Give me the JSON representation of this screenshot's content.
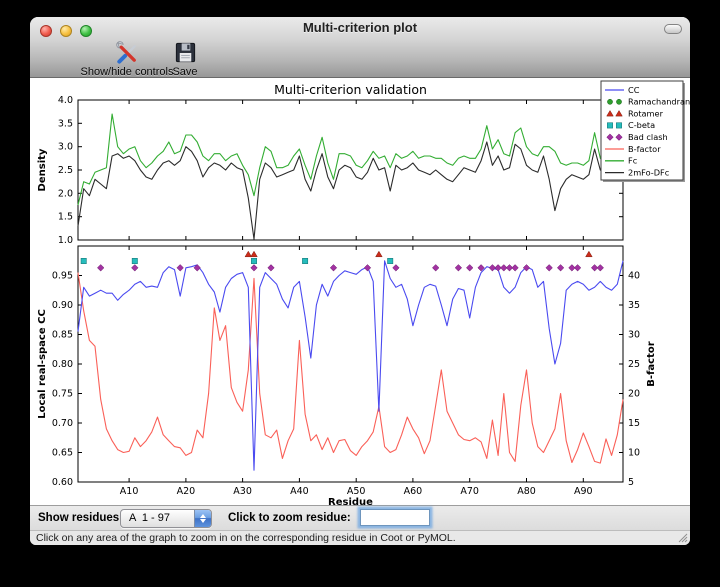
{
  "window": {
    "title": "Multi-criterion plot"
  },
  "toolbar": {
    "buttons": [
      {
        "label": "Show/hide controls",
        "icon": "tools-icon"
      },
      {
        "label": "Save",
        "icon": "save-icon"
      }
    ]
  },
  "plot": {
    "title": "Multi-criterion validation",
    "legend": [
      {
        "label": "CC",
        "symbol": "line",
        "color": "#4a4af0"
      },
      {
        "label": "Ramachandran",
        "symbol": "circle",
        "color": "#2e9e2e"
      },
      {
        "label": "Rotamer",
        "symbol": "triangle",
        "color": "#cc2c1a"
      },
      {
        "label": "C-beta",
        "symbol": "square",
        "color": "#26bcbc"
      },
      {
        "label": "Bad clash",
        "symbol": "diamond",
        "color": "#a232a2"
      },
      {
        "label": "B-factor",
        "symbol": "line",
        "color": "#fa6058"
      },
      {
        "label": "Fc",
        "symbol": "line",
        "color": "#33ad33"
      },
      {
        "label": "2mFo-DFc",
        "symbol": "line",
        "color": "#2b2b2b"
      }
    ]
  },
  "chart_data": [
    {
      "type": "line",
      "title": "Multi-criterion validation",
      "ylabel": "Density",
      "ylim": [
        1.0,
        4.0
      ],
      "yticks": [
        1.0,
        1.5,
        2.0,
        2.5,
        3.0,
        3.5,
        4.0
      ],
      "xlim": [
        1,
        97
      ],
      "grid": false,
      "legend_position": "upper right (outside, over axes corner)",
      "series": [
        {
          "name": "Fc",
          "color": "#33ad33",
          "values": [
            1.75,
            2.25,
            2.2,
            2.45,
            2.5,
            2.55,
            3.7,
            3.0,
            2.85,
            2.95,
            3.0,
            2.7,
            2.55,
            2.65,
            2.8,
            2.9,
            3.1,
            2.85,
            2.9,
            3.25,
            3.25,
            3.1,
            2.8,
            2.7,
            2.85,
            2.85,
            2.7,
            2.8,
            2.85,
            2.6,
            2.4,
            1.95,
            2.55,
            3.0,
            2.9,
            2.55,
            2.55,
            2.6,
            2.8,
            2.95,
            2.6,
            2.3,
            2.8,
            3.2,
            2.65,
            2.3,
            2.85,
            2.85,
            2.8,
            2.6,
            2.55,
            2.7,
            2.9,
            2.75,
            2.8,
            2.55,
            2.85,
            2.75,
            2.8,
            2.9,
            2.75,
            2.8,
            2.8,
            2.75,
            2.75,
            2.65,
            2.6,
            2.75,
            2.8,
            2.75,
            2.75,
            2.95,
            3.45,
            2.95,
            3.15,
            2.85,
            2.8,
            3.3,
            3.4,
            3.0,
            2.85,
            2.8,
            3.0,
            3.0,
            2.9,
            2.65,
            2.6,
            2.65,
            2.65,
            2.6,
            2.7,
            3.3,
            2.75,
            2.6,
            3.25,
            3.2,
            3.4
          ]
        },
        {
          "name": "2mFo-DFc",
          "color": "#2b2b2b",
          "values": [
            1.3,
            2.1,
            1.95,
            2.3,
            2.2,
            2.1,
            2.8,
            2.85,
            2.75,
            2.8,
            2.7,
            2.5,
            2.35,
            2.3,
            2.5,
            2.65,
            2.7,
            2.6,
            2.7,
            3.0,
            2.9,
            2.7,
            2.35,
            2.55,
            2.65,
            2.6,
            2.5,
            2.65,
            2.55,
            2.5,
            1.9,
            1.02,
            2.3,
            2.65,
            2.55,
            2.35,
            2.4,
            2.45,
            2.5,
            2.8,
            2.3,
            2.05,
            2.5,
            2.85,
            2.35,
            2.1,
            2.5,
            2.6,
            2.55,
            2.35,
            2.3,
            2.45,
            2.75,
            2.5,
            2.55,
            2.05,
            2.6,
            2.5,
            2.55,
            2.65,
            2.5,
            2.45,
            2.4,
            2.5,
            2.4,
            2.3,
            2.25,
            2.4,
            2.55,
            2.5,
            2.45,
            2.7,
            3.1,
            2.6,
            2.8,
            2.5,
            2.55,
            3.05,
            2.95,
            2.6,
            2.5,
            2.45,
            2.8,
            2.3,
            1.63,
            2.1,
            2.3,
            2.4,
            2.35,
            2.3,
            2.4,
            2.95,
            2.5,
            2.4,
            2.9,
            2.8,
            3.15
          ]
        }
      ]
    },
    {
      "type": "line",
      "xlabel": "Residue",
      "xlim": [
        1,
        97
      ],
      "xtick_values": [
        10,
        20,
        30,
        40,
        50,
        60,
        70,
        80,
        90
      ],
      "xtick_labels": [
        "A10",
        "A20",
        "A30",
        "A40",
        "A50",
        "A60",
        "A70",
        "A80",
        "A90"
      ],
      "ylabel_left": "Local real-space CC",
      "ylim_left": [
        0.6,
        1.0
      ],
      "yticks_left": [
        0.6,
        0.65,
        0.7,
        0.75,
        0.8,
        0.85,
        0.9,
        0.95
      ],
      "ylabel_right": "B-factor",
      "ylim_right": [
        5,
        45
      ],
      "yticks_right": [
        5,
        10,
        15,
        20,
        25,
        30,
        35,
        40
      ],
      "grid": false,
      "series": [
        {
          "name": "CC",
          "axis": "left",
          "color": "#4a4af0",
          "values": [
            0.855,
            0.93,
            0.915,
            0.92,
            0.925,
            0.92,
            0.92,
            0.908,
            0.918,
            0.925,
            0.935,
            0.94,
            0.93,
            0.932,
            0.93,
            0.955,
            0.965,
            0.96,
            0.915,
            0.963,
            0.965,
            0.968,
            0.955,
            0.935,
            0.922,
            0.888,
            0.93,
            0.945,
            0.952,
            0.955,
            0.93,
            0.62,
            0.93,
            0.955,
            0.945,
            0.935,
            0.91,
            0.895,
            0.93,
            0.94,
            0.88,
            0.81,
            0.9,
            0.935,
            0.915,
            0.94,
            0.95,
            0.958,
            0.955,
            0.952,
            0.96,
            0.965,
            0.94,
            0.72,
            0.975,
            0.945,
            0.93,
            0.935,
            0.91,
            0.865,
            0.9,
            0.93,
            0.935,
            0.932,
            0.9,
            0.865,
            0.91,
            0.928,
            0.925,
            0.878,
            0.93,
            0.955,
            0.965,
            0.962,
            0.96,
            0.93,
            0.92,
            0.93,
            0.955,
            0.965,
            0.96,
            0.93,
            0.94,
            0.86,
            0.8,
            0.835,
            0.925,
            0.935,
            0.94,
            0.935,
            0.925,
            0.93,
            0.94,
            0.93,
            0.925,
            0.935,
            0.975
          ]
        },
        {
          "name": "B-factor",
          "axis": "right",
          "color": "#fa6058",
          "values": [
            40.5,
            34,
            29,
            28,
            19,
            14,
            12,
            10.5,
            10,
            10.2,
            12.5,
            11,
            12,
            13.5,
            16,
            13,
            12,
            11,
            10.8,
            9.5,
            10,
            13.8,
            12.5,
            20,
            34.5,
            29,
            31.5,
            21,
            18.5,
            17,
            24,
            39.5,
            20,
            13,
            12.5,
            13.8,
            9,
            12,
            14,
            29,
            16.5,
            12,
            13,
            10.5,
            12.5,
            10,
            12,
            12.2,
            10.3,
            9.5,
            11,
            12,
            13.5,
            17.8,
            11,
            10,
            10.5,
            13,
            16,
            14,
            12.5,
            9.8,
            12,
            18,
            24,
            17,
            15,
            13,
            12.2,
            12,
            12.5,
            11.8,
            9,
            15.5,
            9.5,
            20,
            10,
            8.5,
            18,
            24,
            15,
            11,
            10,
            12,
            14,
            20,
            12,
            8.3,
            10.5,
            13.3,
            11,
            8.5,
            8.2,
            12.3,
            9.5,
            13,
            19
          ]
        }
      ],
      "markers": [
        {
          "name": "Ramachandran",
          "shape": "circle",
          "color": "#2e9e2e",
          "cc_row": 0.986,
          "residues": []
        },
        {
          "name": "Rotamer",
          "shape": "triangle",
          "color": "#cc2c1a",
          "cc_row": 0.986,
          "residues": [
            31,
            32,
            54,
            91
          ]
        },
        {
          "name": "C-beta",
          "shape": "square",
          "color": "#26bcbc",
          "cc_row": 0.9745,
          "residues": [
            2,
            11,
            32,
            41,
            56
          ]
        },
        {
          "name": "Bad clash",
          "shape": "diamond",
          "color": "#a232a2",
          "cc_row": 0.963,
          "residues": [
            5,
            11,
            19,
            22,
            32,
            35,
            46,
            52,
            57,
            64,
            68,
            70,
            72,
            74,
            75,
            76,
            77,
            78,
            80,
            84,
            86,
            88,
            89,
            92,
            93
          ]
        }
      ]
    }
  ],
  "controls": {
    "show_residues_label": "Show residues:",
    "chain_selector_value": "A  1 - 97",
    "zoom_residue_label": "Click to zoom residue:",
    "zoom_residue_value": ""
  },
  "statusbar": {
    "text": "Click on any area of the graph to zoom in on the corresponding residue in Coot or PyMOL."
  }
}
